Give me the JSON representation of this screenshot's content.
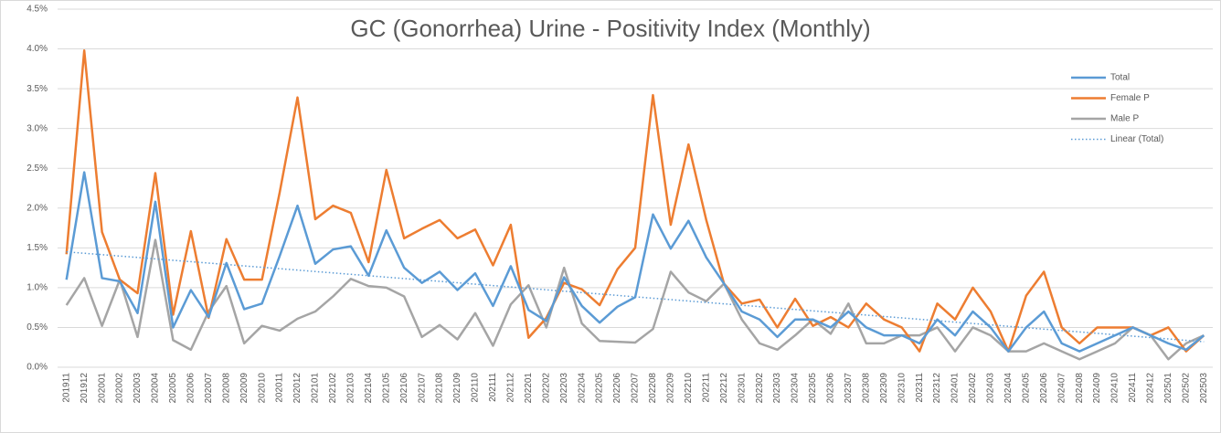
{
  "chart_data": {
    "type": "line",
    "title": "GC (Gonorrhea) Urine - Positivity Index (Monthly)",
    "categories": [
      "201911",
      "201912",
      "202001",
      "202002",
      "202003",
      "202004",
      "202005",
      "202006",
      "202007",
      "202008",
      "202009",
      "202010",
      "202011",
      "202012",
      "202101",
      "202102",
      "202103",
      "202104",
      "202105",
      "202106",
      "202107",
      "202108",
      "202109",
      "202110",
      "202111",
      "202112",
      "202201",
      "202202",
      "202203",
      "202204",
      "202205",
      "202206",
      "202207",
      "202208",
      "202209",
      "202210",
      "202211",
      "202212",
      "202301",
      "202302",
      "202303",
      "202304",
      "202305",
      "202306",
      "202307",
      "202308",
      "202309",
      "202310",
      "202311",
      "202312",
      "202401",
      "202402",
      "202403",
      "202404",
      "202405",
      "202406",
      "202407",
      "202408",
      "202409",
      "202410",
      "202411",
      "202412",
      "202501",
      "202502",
      "202503"
    ],
    "series": [
      {
        "name": "Total",
        "color": "#5b9bd5",
        "values": [
          1.1,
          2.45,
          1.12,
          1.08,
          0.68,
          2.08,
          0.5,
          0.97,
          0.63,
          1.31,
          0.73,
          0.8,
          1.4,
          2.03,
          1.3,
          1.48,
          1.52,
          1.15,
          1.72,
          1.25,
          1.06,
          1.2,
          0.97,
          1.18,
          0.77,
          1.27,
          0.72,
          0.58,
          1.13,
          0.77,
          0.56,
          0.76,
          0.88,
          1.92,
          1.49,
          1.84,
          1.38,
          1.05,
          0.7,
          0.6,
          0.38,
          0.6,
          0.6,
          0.5,
          0.7,
          0.5,
          0.4,
          0.4,
          0.3,
          0.6,
          0.4,
          0.7,
          0.5,
          0.2,
          0.5,
          0.7,
          0.3,
          0.2,
          0.3,
          0.4,
          0.5,
          0.4,
          0.3,
          0.22,
          0.4
        ]
      },
      {
        "name": "Female P",
        "color": "#ed7d31",
        "values": [
          1.42,
          3.98,
          1.7,
          1.1,
          0.93,
          2.44,
          0.66,
          1.71,
          0.62,
          1.61,
          1.1,
          1.1,
          2.2,
          3.39,
          1.86,
          2.03,
          1.94,
          1.32,
          2.48,
          1.62,
          1.74,
          1.85,
          1.62,
          1.73,
          1.28,
          1.79,
          0.37,
          0.62,
          1.06,
          0.98,
          0.78,
          1.23,
          1.5,
          3.42,
          1.79,
          2.8,
          1.85,
          1.05,
          0.8,
          0.85,
          0.5,
          0.86,
          0.52,
          0.63,
          0.5,
          0.8,
          0.6,
          0.5,
          0.2,
          0.8,
          0.6,
          1.0,
          0.7,
          0.2,
          0.9,
          1.2,
          0.5,
          0.3,
          0.5,
          0.5,
          0.5,
          0.4,
          0.5,
          0.2,
          0.4
        ]
      },
      {
        "name": "Male P",
        "color": "#a5a5a5",
        "values": [
          0.78,
          1.12,
          0.52,
          1.1,
          0.38,
          1.6,
          0.34,
          0.22,
          0.7,
          1.02,
          0.3,
          0.52,
          0.46,
          0.61,
          0.7,
          0.89,
          1.11,
          1.02,
          1.0,
          0.89,
          0.38,
          0.53,
          0.35,
          0.68,
          0.27,
          0.79,
          1.03,
          0.5,
          1.25,
          0.55,
          0.33,
          0.32,
          0.31,
          0.48,
          1.2,
          0.94,
          0.83,
          1.05,
          0.6,
          0.3,
          0.22,
          0.4,
          0.6,
          0.42,
          0.8,
          0.3,
          0.3,
          0.4,
          0.4,
          0.5,
          0.2,
          0.5,
          0.4,
          0.2,
          0.2,
          0.3,
          0.2,
          0.1,
          0.2,
          0.3,
          0.5,
          0.4,
          0.1,
          0.3,
          0.4
        ]
      }
    ],
    "trendline": {
      "name": "Linear (Total)",
      "color": "#5b9bd5",
      "from": 1.45,
      "to": 0.32
    },
    "ylim": [
      0,
      4.5
    ],
    "yticks": [
      {
        "value": 0,
        "label": "0.0%"
      },
      {
        "value": 0.5,
        "label": "0.5%"
      },
      {
        "value": 1,
        "label": "1.0%"
      },
      {
        "value": 1.5,
        "label": "1.5%"
      },
      {
        "value": 2,
        "label": "2.0%"
      },
      {
        "value": 2.5,
        "label": "2.5%"
      },
      {
        "value": 3,
        "label": "3.0%"
      },
      {
        "value": 3.5,
        "label": "3.5%"
      },
      {
        "value": 4,
        "label": "4.0%"
      },
      {
        "value": 4.5,
        "label": "4.5%"
      }
    ],
    "grid": true,
    "legend": "right"
  }
}
